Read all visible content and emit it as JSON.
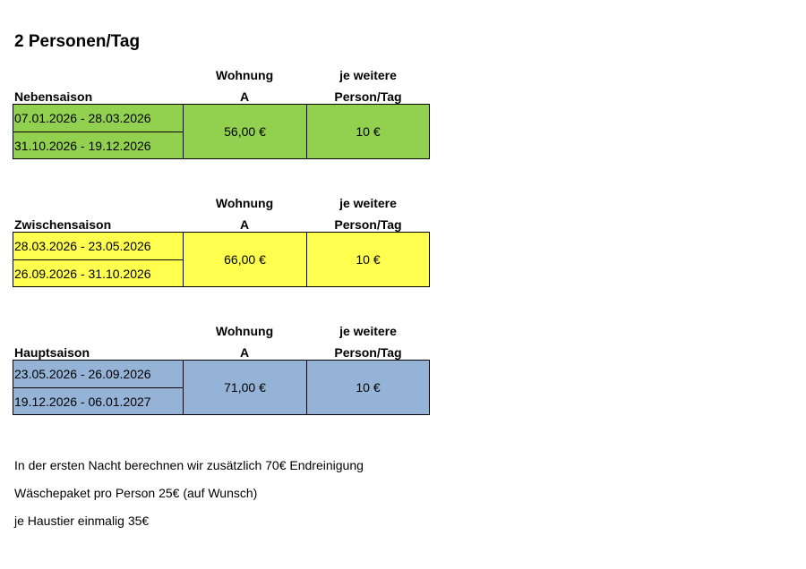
{
  "title": "2 Personen/Tag",
  "columns": {
    "apartment_line1": "Wohnung",
    "apartment_line2": "A",
    "extra_line1": "je weitere",
    "extra_line2": "Person/Tag"
  },
  "seasons": [
    {
      "name": "Nebensaison",
      "color": "#92d050",
      "dates": [
        "07.01.2026 - 28.03.2026",
        "31.10.2026 - 19.12.2026"
      ],
      "price": "56,00 €",
      "extra": "10 €"
    },
    {
      "name": "Zwischensaison",
      "color": "#ffff4f",
      "dates": [
        "28.03.2026 - 23.05.2026",
        "26.09.2026 - 31.10.2026"
      ],
      "price": "66,00 €",
      "extra": "10 €"
    },
    {
      "name": "Hauptsaison",
      "color": "#95b3d7",
      "dates": [
        "23.05.2026 - 26.09.2026",
        "19.12.2026 - 06.01.2027"
      ],
      "price": "71,00 €",
      "extra": "10 €"
    }
  ],
  "notes": [
    "In der ersten Nacht berechnen wir zusätzlich 70€ Endreinigung",
    "Wäschepaket pro Person 25€ (auf Wunsch)",
    "je Haustier einmalig 35€"
  ]
}
